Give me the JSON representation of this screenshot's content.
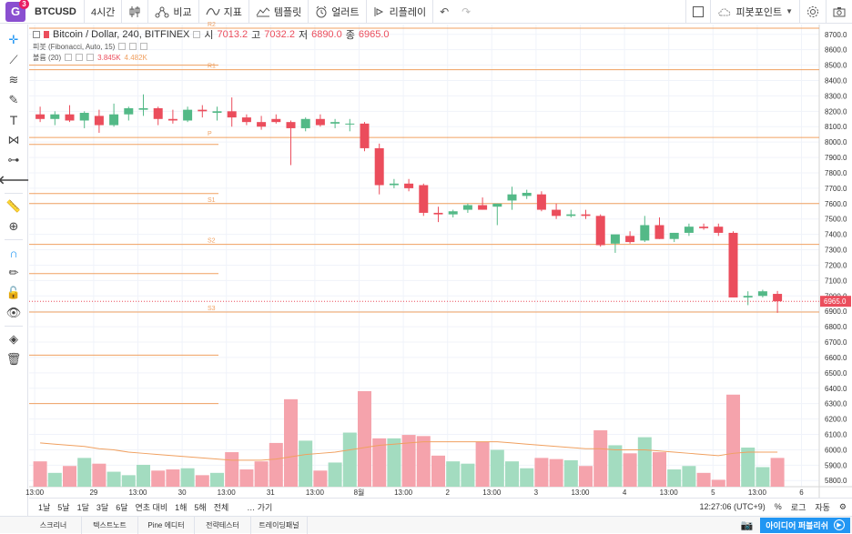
{
  "toolbar": {
    "logo_letter": "G",
    "badge": "3",
    "symbol": "BTCUSD",
    "interval": "4시간",
    "compare": "비교",
    "indicators": "지표",
    "templates": "템플릿",
    "alert": "얼러트",
    "replay": "리플레이",
    "pivot_points": "피봇포인트",
    "icons": {
      "candles": "candlestick-icon",
      "compare": "compare-icon",
      "indicators": "indicators-icon",
      "templates": "templates-icon",
      "alert": "alarm-clock-icon",
      "replay": "replay-icon",
      "undo": "undo-icon",
      "redo": "redo-icon",
      "fullscreen": "fullscreen-icon",
      "cloud": "cloud-icon",
      "settings": "gear-icon"
    }
  },
  "legend": {
    "title": "Bitcoin / Dollar, 240, BITFINEX",
    "o_label": "시",
    "o": "7013.2",
    "h_label": "고",
    "h": "7032.2",
    "l_label": "저",
    "l": "6890.0",
    "c_label": "종",
    "c": "6965.0",
    "pivot": "피봇 (Fibonacci, Auto, 15)",
    "volume": "볼륨 (20)",
    "vol1": "3.845K",
    "vol2": "4.482K"
  },
  "bottom": {
    "ranges": [
      "1날",
      "5날",
      "1달",
      "3달",
      "6달",
      "연초 대비",
      "1해",
      "5해",
      "전체"
    ],
    "goto": "가기",
    "time": "12:27:06 (UTC+9)",
    "percent": "%",
    "log": "로그",
    "auto": "자동"
  },
  "footer": {
    "tabs": [
      "스크리너",
      "텍스트노트",
      "Pine 에디터",
      "전략테스터",
      "트레이딩패널"
    ],
    "publish": "아이디어 퍼블리쉬"
  },
  "colors": {
    "up": "#53b987",
    "down": "#eb4d5c",
    "pivot": "#f0a060",
    "volume_ma": "#f0a060"
  },
  "chart_data": {
    "type": "candlestick",
    "symbol": "BTCUSD",
    "title": "Bitcoin / Dollar, 240, BITFINEX",
    "y_ticks": [
      5800,
      5900,
      6000,
      6100,
      6200,
      6300,
      6400,
      6500,
      6600,
      6700,
      6800,
      6900,
      7000,
      7100,
      7200,
      7300,
      7400,
      7500,
      7600,
      7700,
      7800,
      7900,
      8000,
      8100,
      8200,
      8300,
      8400,
      8500,
      8600,
      8700
    ],
    "ylim": [
      5760,
      8740
    ],
    "x_labels": [
      "13:00",
      "29",
      "13:00",
      "30",
      "13:00",
      "31",
      "13:00",
      "8월",
      "13:00",
      "2",
      "13:00",
      "3",
      "13:00",
      "4",
      "13:00",
      "5",
      "13:00",
      "6"
    ],
    "pivot_levels": [
      {
        "name": "R2",
        "value": 8740
      },
      {
        "name": "R1",
        "value": 8470
      },
      {
        "name": "P",
        "value": 8030
      },
      {
        "name": "S1",
        "value": 7600
      },
      {
        "name": "S2",
        "value": 7335
      },
      {
        "name": "S3",
        "value": 6895
      }
    ],
    "extra_levels": [
      8500,
      7985,
      7665,
      7145,
      6615,
      6300
    ],
    "last_price": 6965.0,
    "candles": [
      {
        "o": 8180,
        "h": 8230,
        "l": 8130,
        "c": 8150
      },
      {
        "o": 8150,
        "h": 8200,
        "l": 8110,
        "c": 8180
      },
      {
        "o": 8180,
        "h": 8240,
        "l": 8130,
        "c": 8140
      },
      {
        "o": 8140,
        "h": 8200,
        "l": 8090,
        "c": 8190
      },
      {
        "o": 8170,
        "h": 8210,
        "l": 8060,
        "c": 8110
      },
      {
        "o": 8110,
        "h": 8250,
        "l": 8100,
        "c": 8180
      },
      {
        "o": 8180,
        "h": 8230,
        "l": 8140,
        "c": 8220
      },
      {
        "o": 8210,
        "h": 8310,
        "l": 8170,
        "c": 8220
      },
      {
        "o": 8220,
        "h": 8230,
        "l": 8110,
        "c": 8150
      },
      {
        "o": 8150,
        "h": 8210,
        "l": 8120,
        "c": 8140
      },
      {
        "o": 8140,
        "h": 8230,
        "l": 8130,
        "c": 8210
      },
      {
        "o": 8210,
        "h": 8240,
        "l": 8160,
        "c": 8200
      },
      {
        "o": 8190,
        "h": 8230,
        "l": 8140,
        "c": 8200
      },
      {
        "o": 8200,
        "h": 8290,
        "l": 8100,
        "c": 8160
      },
      {
        "o": 8160,
        "h": 8180,
        "l": 8110,
        "c": 8130
      },
      {
        "o": 8130,
        "h": 8170,
        "l": 8080,
        "c": 8100
      },
      {
        "o": 8150,
        "h": 8180,
        "l": 8120,
        "c": 8130
      },
      {
        "o": 8130,
        "h": 8140,
        "l": 7850,
        "c": 8090
      },
      {
        "o": 8090,
        "h": 8160,
        "l": 8070,
        "c": 8150
      },
      {
        "o": 8150,
        "h": 8180,
        "l": 8100,
        "c": 8110
      },
      {
        "o": 8120,
        "h": 8150,
        "l": 8090,
        "c": 8130
      },
      {
        "o": 8120,
        "h": 8150,
        "l": 8070,
        "c": 8120
      },
      {
        "o": 8120,
        "h": 8130,
        "l": 7940,
        "c": 7960
      },
      {
        "o": 7960,
        "h": 7990,
        "l": 7660,
        "c": 7720
      },
      {
        "o": 7720,
        "h": 7760,
        "l": 7700,
        "c": 7730
      },
      {
        "o": 7730,
        "h": 7760,
        "l": 7680,
        "c": 7700
      },
      {
        "o": 7720,
        "h": 7730,
        "l": 7520,
        "c": 7540
      },
      {
        "o": 7540,
        "h": 7580,
        "l": 7480,
        "c": 7530
      },
      {
        "o": 7530,
        "h": 7560,
        "l": 7510,
        "c": 7550
      },
      {
        "o": 7560,
        "h": 7600,
        "l": 7540,
        "c": 7590
      },
      {
        "o": 7590,
        "h": 7640,
        "l": 7560,
        "c": 7560
      },
      {
        "o": 7580,
        "h": 7600,
        "l": 7460,
        "c": 7600
      },
      {
        "o": 7620,
        "h": 7710,
        "l": 7560,
        "c": 7660
      },
      {
        "o": 7650,
        "h": 7690,
        "l": 7630,
        "c": 7670
      },
      {
        "o": 7660,
        "h": 7680,
        "l": 7550,
        "c": 7560
      },
      {
        "o": 7560,
        "h": 7600,
        "l": 7500,
        "c": 7520
      },
      {
        "o": 7520,
        "h": 7560,
        "l": 7510,
        "c": 7530
      },
      {
        "o": 7530,
        "h": 7560,
        "l": 7500,
        "c": 7520
      },
      {
        "o": 7520,
        "h": 7530,
        "l": 7320,
        "c": 7330
      },
      {
        "o": 7340,
        "h": 7390,
        "l": 7280,
        "c": 7400
      },
      {
        "o": 7390,
        "h": 7420,
        "l": 7340,
        "c": 7350
      },
      {
        "o": 7360,
        "h": 7520,
        "l": 7350,
        "c": 7460
      },
      {
        "o": 7460,
        "h": 7510,
        "l": 7370,
        "c": 7370
      },
      {
        "o": 7370,
        "h": 7410,
        "l": 7350,
        "c": 7410
      },
      {
        "o": 7410,
        "h": 7470,
        "l": 7390,
        "c": 7450
      },
      {
        "o": 7450,
        "h": 7470,
        "l": 7430,
        "c": 7440
      },
      {
        "o": 7450,
        "h": 7470,
        "l": 7390,
        "c": 7410
      },
      {
        "o": 7410,
        "h": 7420,
        "l": 6990,
        "c": 6990
      },
      {
        "o": 6990,
        "h": 7030,
        "l": 6940,
        "c": 7000
      },
      {
        "o": 7000,
        "h": 7040,
        "l": 6990,
        "c": 7030
      },
      {
        "o": 7013.2,
        "h": 7032.2,
        "l": 6890,
        "c": 6965
      }
    ],
    "volumes": [
      2.2,
      1.2,
      1.8,
      2.5,
      2.0,
      1.3,
      1.0,
      1.9,
      1.4,
      1.5,
      1.6,
      1.0,
      1.2,
      3.0,
      1.5,
      2.2,
      3.8,
      7.6,
      4.0,
      1.4,
      2.1,
      4.7,
      8.3,
      4.2,
      4.2,
      4.5,
      4.4,
      2.7,
      2.2,
      2.0,
      3.9,
      3.2,
      2.2,
      1.6,
      2.5,
      2.4,
      2.3,
      1.8,
      4.9,
      3.6,
      2.9,
      4.3,
      3.0,
      1.5,
      1.8,
      1.2,
      0.6,
      8.0,
      3.4,
      1.7,
      2.5
    ],
    "volume_ma": [
      3.8,
      3.7,
      3.6,
      3.5,
      3.3,
      3.2,
      3.0,
      2.9,
      2.8,
      2.7,
      2.6,
      2.5,
      2.4,
      2.3,
      2.3,
      2.3,
      2.4,
      2.6,
      2.8,
      2.9,
      3.0,
      3.2,
      3.4,
      3.6,
      3.7,
      3.8,
      3.9,
      3.9,
      3.9,
      3.9,
      3.9,
      3.9,
      3.8,
      3.7,
      3.6,
      3.5,
      3.4,
      3.3,
      3.3,
      3.2,
      3.2,
      3.2,
      3.1,
      3.0,
      2.9,
      2.8,
      2.7,
      2.9,
      3.0,
      3.0,
      3.0
    ]
  }
}
